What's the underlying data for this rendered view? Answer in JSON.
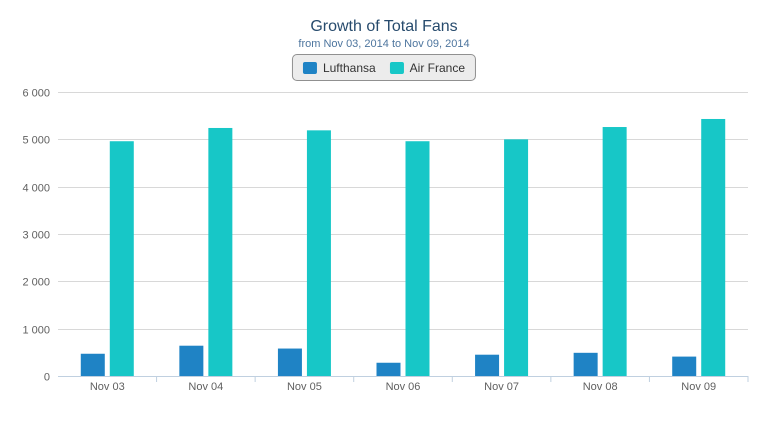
{
  "chart_data": {
    "type": "bar",
    "title": "Growth of Total Fans",
    "subtitle": "from Nov 03, 2014 to Nov 09, 2014",
    "categories": [
      "Nov 03",
      "Nov 04",
      "Nov 05",
      "Nov 06",
      "Nov 07",
      "Nov 08",
      "Nov 09"
    ],
    "series": [
      {
        "name": "Lufthansa",
        "color": "#1f83c5",
        "values": [
          470,
          640,
          580,
          280,
          450,
          490,
          410
        ]
      },
      {
        "name": "Air France",
        "color": "#17c7c7",
        "values": [
          4960,
          5240,
          5190,
          4960,
          5000,
          5260,
          5430
        ]
      }
    ],
    "ylim": [
      0,
      6000
    ],
    "yticks": [
      "0",
      "1 000",
      "2 000",
      "3 000",
      "4 000",
      "5 000",
      "6 000"
    ],
    "grid": true,
    "legend_position": "top-center"
  }
}
